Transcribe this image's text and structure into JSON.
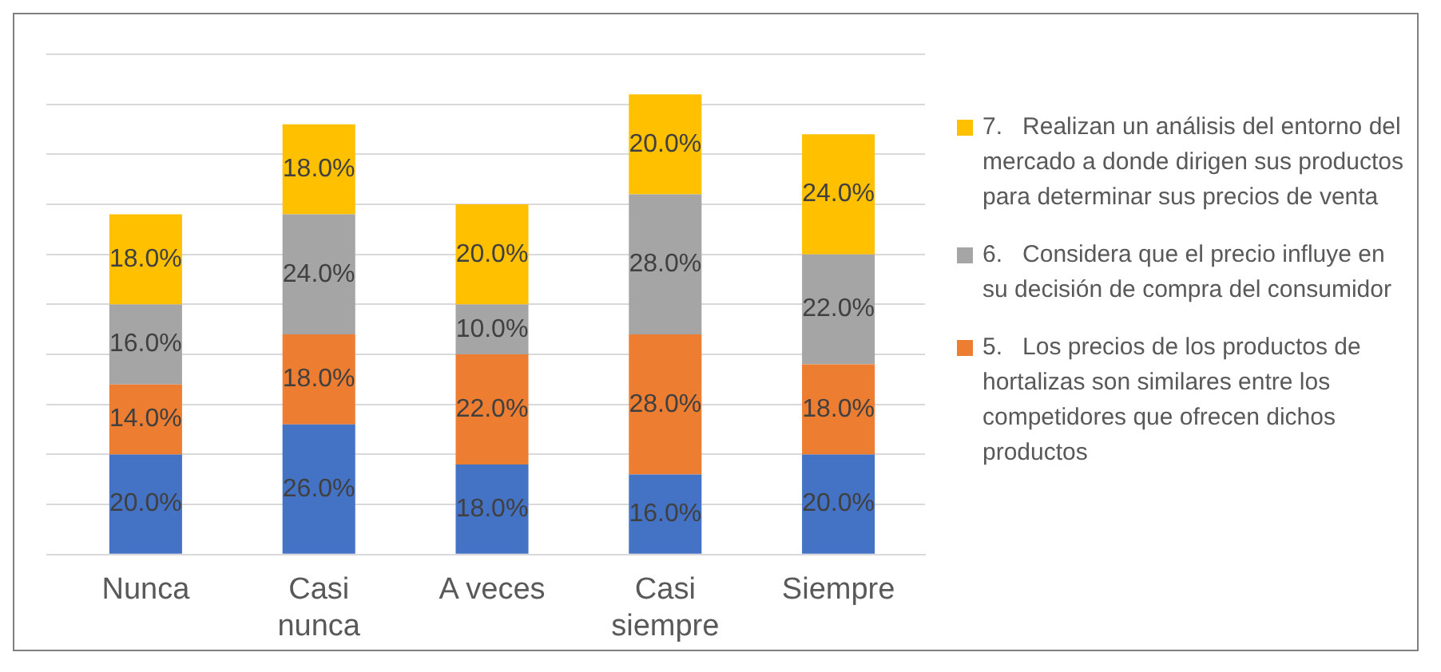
{
  "chart_data": {
    "type": "bar",
    "stacked": true,
    "categories": [
      "Nunca",
      "Casi nunca",
      "A veces",
      "Casi siempre",
      "Siempre"
    ],
    "series": [
      {
        "color": "#4472c4",
        "values": [
          20,
          26,
          18,
          16,
          20
        ],
        "value_labels": [
          "20.0%",
          "26.0%",
          "18.0%",
          "16.0%",
          "20.0%"
        ]
      },
      {
        "name": "5.\tLos precios de los productos de hortalizas son similares entre los competidores que ofrecen dichos productos",
        "color": "#ed7d31",
        "values": [
          14,
          18,
          22,
          28,
          18
        ],
        "value_labels": [
          "14.0%",
          "18.0%",
          "22.0%",
          "28.0%",
          "18.0%"
        ]
      },
      {
        "name": "6.\tConsidera que el precio influye en su decisión de compra del consumidor",
        "color": "#a5a5a5",
        "values": [
          16,
          24,
          10,
          28,
          22
        ],
        "value_labels": [
          "16.0%",
          "24.0%",
          "10.0%",
          "28.0%",
          "22.0%"
        ]
      },
      {
        "name": "7.\tRealizan un análisis del entorno del mercado a donde dirigen sus productos para determinar sus precios de venta",
        "color": "#ffc000",
        "values": [
          18,
          18,
          20,
          20,
          24
        ],
        "value_labels": [
          "18.0%",
          "18.0%",
          "20.0%",
          "20.0%",
          "24.0%"
        ]
      }
    ],
    "grid": "y",
    "tick_labels": "x",
    "legend": "right"
  }
}
